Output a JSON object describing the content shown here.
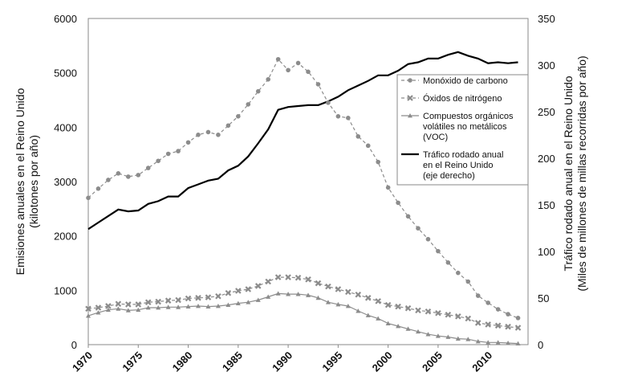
{
  "chart_data": {
    "type": "line",
    "title": "",
    "x": [
      1970,
      1971,
      1972,
      1973,
      1974,
      1975,
      1976,
      1977,
      1978,
      1979,
      1980,
      1981,
      1982,
      1983,
      1984,
      1985,
      1986,
      1987,
      1988,
      1989,
      1990,
      1991,
      1992,
      1993,
      1994,
      1995,
      1996,
      1997,
      1998,
      1999,
      2000,
      2001,
      2002,
      2003,
      2004,
      2005,
      2006,
      2007,
      2008,
      2009,
      2010,
      2011,
      2012,
      2013
    ],
    "xticks": [
      "1970",
      "1975",
      "1980",
      "1985",
      "1990",
      "1995",
      "2000",
      "2005",
      "2010"
    ],
    "xtick_values": [
      1970,
      1975,
      1980,
      1985,
      1990,
      1995,
      2000,
      2005,
      2010
    ],
    "xlim": [
      1970,
      2014
    ],
    "ylim": [
      0,
      6000
    ],
    "yticks": [
      "0",
      "1000",
      "2000",
      "3000",
      "4000",
      "5000",
      "6000"
    ],
    "ytick_values": [
      0,
      1000,
      2000,
      3000,
      4000,
      5000,
      6000
    ],
    "y2lim": [
      0,
      350
    ],
    "y2ticks": [
      "0",
      "50",
      "100",
      "150",
      "200",
      "250",
      "300",
      "350"
    ],
    "y2tick_values": [
      0,
      50,
      100,
      150,
      200,
      250,
      300,
      350
    ],
    "ylabel": [
      "Emisiones anuales en el Reino Unido",
      "(kilotones por año)"
    ],
    "y2label": [
      "Tráfico rodado anual en el Reino Unido",
      "(Miles de millones de millas recorridas por año)"
    ],
    "grid": false,
    "legend_position": "right-center",
    "series": [
      {
        "name": "co",
        "legend": [
          "Monóxido de carbono"
        ],
        "axis": "left",
        "color": "#8c8c8c",
        "dash": true,
        "marker": "circle",
        "values": [
          2700,
          2870,
          3030,
          3150,
          3090,
          3120,
          3250,
          3380,
          3510,
          3560,
          3720,
          3860,
          3910,
          3860,
          4030,
          4200,
          4420,
          4660,
          4880,
          5250,
          5050,
          5180,
          5020,
          4790,
          4450,
          4200,
          4170,
          3830,
          3660,
          3360,
          2890,
          2610,
          2360,
          2140,
          1940,
          1720,
          1510,
          1320,
          1160,
          900,
          770,
          650,
          560,
          490
        ]
      },
      {
        "name": "nox",
        "legend": [
          "Óxidos de nitrógeno"
        ],
        "axis": "left",
        "color": "#8c8c8c",
        "dash": true,
        "marker": "cross",
        "values": [
          660,
          680,
          710,
          750,
          740,
          740,
          780,
          790,
          810,
          820,
          850,
          860,
          870,
          890,
          950,
          990,
          1020,
          1080,
          1160,
          1240,
          1240,
          1230,
          1200,
          1130,
          1070,
          1020,
          970,
          920,
          860,
          800,
          730,
          700,
          670,
          630,
          610,
          580,
          550,
          520,
          480,
          400,
          370,
          350,
          330,
          310
        ]
      },
      {
        "name": "voc",
        "legend": [
          "Compuestos orgánicos",
          "volátiles no metálicos",
          "(VOC)"
        ],
        "axis": "left",
        "color": "#8c8c8c",
        "dash": false,
        "marker": "triangle",
        "values": [
          530,
          590,
          640,
          660,
          630,
          640,
          680,
          680,
          690,
          690,
          700,
          710,
          700,
          710,
          730,
          760,
          780,
          820,
          880,
          940,
          930,
          930,
          910,
          860,
          780,
          740,
          710,
          620,
          540,
          480,
          390,
          340,
          290,
          240,
          190,
          160,
          140,
          110,
          100,
          60,
          40,
          40,
          30,
          20
        ]
      },
      {
        "name": "traffic",
        "legend": [
          "Tráfico rodado anual",
          "en el Reino Unido",
          "(eje derecho)"
        ],
        "axis": "right",
        "color": "#000000",
        "dash": false,
        "marker": "none",
        "values": [
          124,
          131,
          138,
          145,
          143,
          144,
          151,
          154,
          159,
          159,
          168,
          172,
          176,
          178,
          187,
          192,
          202,
          216,
          231,
          252,
          255,
          256,
          257,
          257,
          261,
          266,
          273,
          278,
          283,
          289,
          289,
          294,
          301,
          303,
          307,
          307,
          311,
          314,
          310,
          307,
          302,
          303,
          302,
          303
        ]
      }
    ]
  }
}
